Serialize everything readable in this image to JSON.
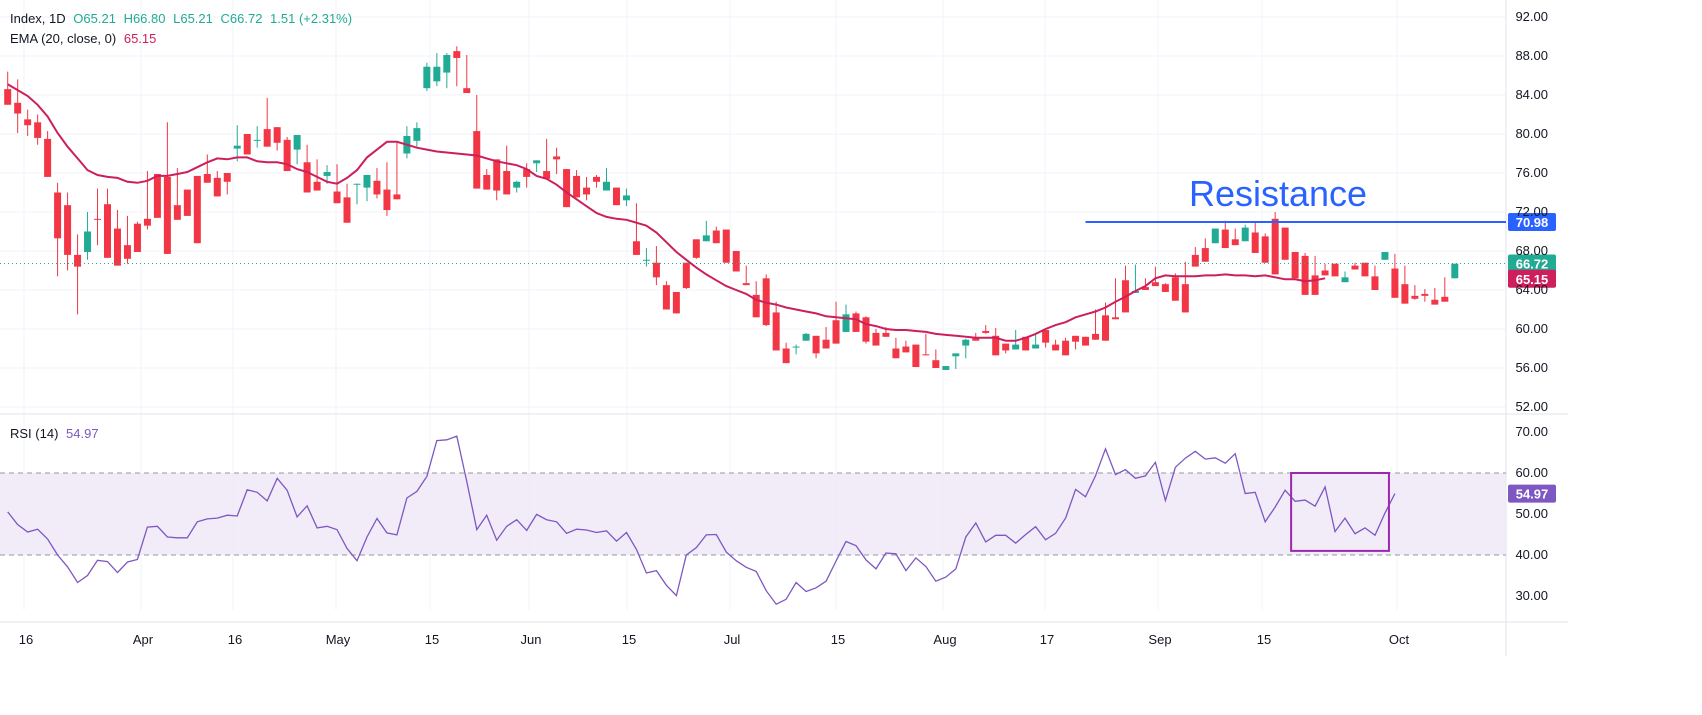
{
  "legend": {
    "symbol": "Index, 1D",
    "open": "O65.21",
    "high": "H66.80",
    "low": "L65.21",
    "close": "C66.72",
    "change": "1.51 (+2.31%)",
    "ema_label": "EMA (20, close, 0)",
    "ema_value": "65.15",
    "rsi_label": "RSI (14)",
    "rsi_value": "54.97"
  },
  "colors": {
    "up": "#22ab94",
    "down": "#f23645",
    "ema": "#cc1f5c",
    "rsi": "#7e57c2",
    "rsi_band": "#ede7f6",
    "resistance": "#2962ff",
    "box": "#9c27b0",
    "grid": "#f0f3fa"
  },
  "chart_data": [
    {
      "type": "candlestick",
      "title": "Index, 1D",
      "x_ticks": [
        "16",
        "Apr",
        "16",
        "May",
        "15",
        "Jun",
        "15",
        "Jul",
        "15",
        "Aug",
        "17",
        "Sep",
        "15",
        "Oct"
      ],
      "y_ticks": [
        "92.00",
        "88.00",
        "84.00",
        "80.00",
        "76.00",
        "72.00",
        "68.00",
        "64.00",
        "60.00",
        "56.00",
        "52.00"
      ],
      "ylim": [
        52,
        92
      ],
      "grid": true,
      "price_tags": {
        "resistance": "70.98",
        "last": "66.72",
        "ema": "65.15"
      },
      "annotation": "Resistance",
      "resistance_level": 70.98,
      "candles": [
        [
          84.6,
          86.4,
          83.6,
          83.0
        ],
        [
          83.2,
          85.6,
          80.1,
          82.1
        ],
        [
          81.5,
          82.5,
          79.8,
          80.9
        ],
        [
          81.2,
          82.0,
          78.9,
          79.6
        ],
        [
          79.5,
          80.3,
          75.9,
          75.6
        ],
        [
          74.0,
          75.0,
          65.4,
          69.3
        ],
        [
          72.7,
          74.0,
          66.0,
          67.6
        ],
        [
          67.6,
          69.7,
          61.5,
          66.4
        ],
        [
          67.9,
          72.0,
          67.1,
          70.0
        ],
        [
          71.3,
          74.4,
          68.6,
          71.2
        ],
        [
          72.8,
          74.4,
          67.9,
          67.3
        ],
        [
          70.3,
          72.2,
          67.3,
          66.5
        ],
        [
          68.6,
          71.6,
          66.7,
          67.2
        ],
        [
          70.8,
          71.0,
          68.3,
          67.9
        ],
        [
          71.3,
          76.2,
          70.2,
          70.6
        ],
        [
          75.9,
          75.0,
          71.5,
          71.4
        ],
        [
          75.6,
          81.2,
          74.9,
          67.7
        ],
        [
          72.7,
          76.5,
          71.4,
          71.2
        ],
        [
          74.3,
          72.7,
          73.3,
          71.6
        ],
        [
          75.7,
          75.1,
          73.7,
          68.8
        ],
        [
          75.9,
          77.9,
          75.8,
          75.0
        ],
        [
          75.5,
          76.2,
          74.3,
          73.6
        ],
        [
          76.0,
          74.3,
          73.8,
          75.1
        ],
        [
          78.5,
          80.9,
          77.2,
          78.8
        ],
        [
          80.0,
          79.1,
          79.1,
          77.9
        ],
        [
          79.4,
          80.8,
          78.6,
          79.4
        ],
        [
          80.5,
          83.7,
          80.5,
          78.7
        ],
        [
          80.7,
          80.1,
          78.3,
          79.1
        ],
        [
          79.4,
          79.7,
          78.2,
          76.2
        ],
        [
          78.4,
          78.5,
          76.9,
          79.9
        ],
        [
          77.1,
          78.9,
          74.3,
          74.0
        ],
        [
          75.1,
          77.4,
          74.4,
          74.2
        ],
        [
          75.7,
          76.8,
          74.9,
          76.1
        ],
        [
          74.1,
          76.9,
          73.6,
          72.9
        ],
        [
          73.5,
          74.9,
          72.2,
          70.9
        ],
        [
          74.8,
          74.2,
          72.8,
          74.9
        ],
        [
          74.5,
          75.7,
          73.1,
          75.8
        ],
        [
          75.2,
          76.5,
          73.4,
          73.8
        ],
        [
          74.3,
          77.1,
          71.6,
          72.2
        ],
        [
          73.8,
          79.2,
          73.6,
          73.3
        ],
        [
          78.0,
          80.8,
          77.5,
          79.8
        ],
        [
          79.3,
          81.2,
          78.7,
          80.6
        ],
        [
          84.7,
          87.3,
          84.4,
          86.9
        ],
        [
          85.4,
          88.3,
          84.9,
          86.9
        ],
        [
          86.3,
          88.3,
          84.7,
          88.1
        ],
        [
          88.5,
          89.0,
          84.9,
          87.8
        ],
        [
          84.7,
          88.1,
          84.2,
          84.2
        ],
        [
          80.3,
          84.0,
          76.1,
          74.4
        ],
        [
          75.8,
          76.4,
          74.6,
          74.3
        ],
        [
          77.4,
          77.3,
          73.2,
          74.2
        ],
        [
          76.2,
          78.8,
          75.0,
          73.8
        ],
        [
          74.5,
          75.2,
          74.0,
          75.1
        ],
        [
          76.4,
          77.0,
          74.5,
          75.6
        ],
        [
          77.0,
          76.6,
          76.1,
          77.3
        ],
        [
          76.2,
          79.5,
          76.3,
          75.4
        ],
        [
          77.7,
          78.6,
          75.9,
          77.4
        ],
        [
          76.4,
          75.8,
          73.6,
          72.5
        ],
        [
          75.7,
          76.3,
          74.9,
          73.5
        ],
        [
          74.5,
          75.6,
          73.2,
          73.8
        ],
        [
          75.6,
          75.8,
          74.5,
          75.1
        ],
        [
          74.2,
          76.5,
          74.6,
          75.1
        ],
        [
          74.5,
          74.0,
          73.1,
          72.7
        ],
        [
          73.2,
          74.4,
          72.6,
          73.7
        ],
        [
          69.0,
          72.9,
          67.7,
          67.6
        ],
        [
          67.0,
          68.3,
          66.4,
          67.1
        ],
        [
          66.8,
          68.5,
          64.5,
          65.3
        ],
        [
          64.5,
          64.9,
          62.5,
          62.0
        ],
        [
          63.8,
          63.8,
          62.0,
          61.6
        ],
        [
          66.8,
          65.6,
          64.1,
          64.2
        ],
        [
          69.2,
          68.4,
          67.2,
          67.3
        ],
        [
          69.0,
          71.1,
          69.3,
          69.6
        ],
        [
          70.1,
          70.5,
          68.9,
          68.8
        ],
        [
          70.2,
          69.4,
          67.7,
          66.8
        ],
        [
          68.0,
          67.4,
          67.1,
          65.9
        ],
        [
          64.7,
          66.5,
          65.5,
          64.5
        ],
        [
          63.5,
          64.9,
          62.4,
          61.2
        ],
        [
          65.2,
          65.6,
          60.3,
          60.4
        ],
        [
          61.7,
          62.8,
          59.5,
          57.8
        ],
        [
          58.0,
          58.6,
          58.2,
          56.5
        ],
        [
          58.2,
          58.4,
          57.4,
          58.2
        ],
        [
          58.8,
          59.6,
          59.2,
          59.5
        ],
        [
          59.3,
          58.4,
          57.0,
          57.5
        ],
        [
          58.9,
          60.2,
          58.0,
          58.0
        ],
        [
          60.9,
          62.8,
          61.5,
          58.5
        ],
        [
          59.7,
          62.5,
          60.2,
          61.5
        ],
        [
          61.6,
          61.8,
          61.5,
          59.7
        ],
        [
          61.2,
          61.3,
          58.5,
          58.7
        ],
        [
          59.6,
          60.0,
          59.6,
          58.3
        ],
        [
          59.6,
          60.2,
          59.4,
          59.2
        ],
        [
          58.0,
          59.1,
          58.5,
          57.0
        ],
        [
          58.2,
          58.8,
          58.2,
          57.6
        ],
        [
          58.4,
          58.3,
          56.9,
          56.1
        ],
        [
          57.4,
          59.5,
          57.9,
          57.3
        ],
        [
          56.8,
          57.9,
          56.0,
          56.0
        ],
        [
          55.8,
          56.1,
          55.9,
          56.2
        ],
        [
          57.2,
          56.4,
          55.9,
          57.5
        ],
        [
          58.3,
          59.0,
          57.0,
          58.9
        ],
        [
          59.1,
          59.6,
          58.8,
          58.8
        ],
        [
          59.8,
          60.4,
          59.5,
          59.6
        ],
        [
          59.3,
          60.1,
          57.8,
          57.3
        ],
        [
          58.5,
          58.0,
          57.5,
          57.8
        ],
        [
          57.9,
          59.9,
          58.1,
          58.4
        ],
        [
          59.2,
          58.9,
          57.9,
          57.8
        ],
        [
          58.0,
          59.4,
          58.1,
          58.4
        ],
        [
          59.9,
          58.7,
          58.1,
          58.6
        ],
        [
          58.4,
          58.9,
          57.8,
          57.8
        ],
        [
          58.8,
          59.1,
          58.2,
          57.3
        ],
        [
          59.3,
          59.1,
          57.9,
          58.7
        ],
        [
          59.2,
          59.2,
          58.3,
          58.3
        ],
        [
          59.5,
          62.0,
          58.9,
          58.9
        ],
        [
          61.4,
          62.7,
          59.4,
          58.8
        ],
        [
          61.2,
          65.2,
          62.6,
          61.0
        ],
        [
          65.0,
          66.5,
          63.7,
          61.7
        ],
        [
          63.7,
          66.6,
          65.1,
          63.9
        ],
        [
          64.3,
          65.2,
          64.6,
          64.0
        ],
        [
          64.8,
          66.4,
          64.4,
          64.4
        ],
        [
          64.6,
          64.7,
          64.4,
          63.8
        ],
        [
          65.3,
          65.5,
          65.7,
          62.9
        ],
        [
          64.6,
          66.9,
          65.0,
          61.7
        ],
        [
          67.6,
          68.4,
          67.0,
          66.4
        ],
        [
          68.3,
          69.3,
          68.1,
          66.9
        ],
        [
          68.8,
          70.1,
          68.9,
          70.3
        ],
        [
          70.2,
          71.1,
          69.5,
          68.3
        ],
        [
          69.2,
          69.2,
          70.3,
          68.6
        ],
        [
          69.0,
          70.7,
          69.0,
          70.4
        ],
        [
          69.9,
          70.9,
          69.0,
          67.8
        ],
        [
          69.5,
          69.1,
          69.8,
          66.8
        ],
        [
          71.3,
          72.0,
          70.5,
          65.6
        ],
        [
          70.4,
          68.4,
          67.3,
          67.1
        ],
        [
          67.9,
          66.9,
          66.1,
          65.2
        ],
        [
          67.5,
          67.8,
          65.0,
          63.5
        ],
        [
          65.5,
          67.5,
          66.0,
          63.5
        ],
        [
          66.0,
          66.7,
          65.6,
          65.5
        ],
        [
          66.7,
          66.7,
          65.6,
          65.4
        ],
        [
          64.8,
          65.6,
          65.9,
          65.3
        ],
        [
          66.5,
          66.8,
          66.2,
          66.1
        ],
        [
          66.8,
          66.5,
          66.6,
          65.4
        ],
        [
          65.4,
          66.5,
          65.7,
          64.0
        ],
        [
          67.1,
          67.4,
          67.5,
          67.9
        ],
        [
          66.2,
          67.7,
          64.2,
          63.2
        ],
        [
          64.6,
          66.5,
          63.2,
          62.6
        ],
        [
          63.4,
          64.5,
          63.0,
          63.1
        ],
        [
          63.6,
          64.1,
          62.8,
          63.4
        ],
        [
          63.0,
          64.2,
          62.8,
          62.5
        ],
        [
          63.3,
          65.3,
          64.6,
          62.8
        ],
        [
          65.2,
          66.7,
          65.2,
          66.7
        ]
      ],
      "ema20": [
        85.1,
        84.5,
        83.9,
        83.0,
        81.8,
        80.1,
        78.7,
        77.5,
        76.3,
        75.8,
        75.6,
        75.5,
        75.1,
        75.0,
        75.2,
        75.7,
        75.7,
        75.9,
        76.1,
        76.6,
        77.1,
        77.5,
        77.4,
        77.6,
        77.6,
        77.2,
        77.1,
        77.1,
        76.9,
        76.4,
        76.1,
        75.6,
        75.1,
        74.9,
        75.5,
        76.3,
        77.6,
        78.4,
        79.2,
        79.2,
        78.9,
        78.6,
        78.4,
        78.2,
        78.1,
        78.0,
        77.9,
        77.8,
        77.5,
        77.2,
        77.0,
        76.8,
        76.4,
        75.7,
        75.4,
        74.8,
        74.0,
        73.3,
        72.6,
        71.9,
        71.5,
        71.3,
        71.2,
        70.9,
        70.6,
        69.9,
        68.9,
        67.9,
        67.1,
        66.3,
        65.6,
        65.0,
        64.4,
        64.0,
        63.6,
        63.0,
        62.7,
        62.5,
        62.2,
        62.0,
        61.8,
        61.6,
        61.3,
        61.2,
        61.1,
        61.0,
        60.5,
        60.3,
        60.0,
        59.9,
        59.9,
        59.8,
        59.7,
        59.5,
        59.4,
        59.3,
        59.2,
        59.1,
        59.1,
        59.1,
        58.8,
        58.8,
        59.1,
        59.5,
        60.0,
        60.4,
        60.7,
        61.2,
        61.5,
        61.8,
        62.2,
        62.8,
        63.3,
        63.9,
        64.4,
        65.2,
        65.5,
        65.4,
        65.4,
        65.4,
        65.5,
        65.5,
        65.6,
        65.5,
        65.5,
        65.4,
        65.5,
        65.3,
        65.1,
        65.1,
        64.9,
        65.0,
        65.2
      ]
    },
    {
      "type": "line",
      "title": "RSI (14)",
      "y_ticks": [
        "70.00",
        "60.00",
        "50.00",
        "40.00",
        "30.00"
      ],
      "ylim": [
        25.5,
        71.5
      ],
      "band": [
        40,
        60
      ],
      "last_tag": "54.97",
      "values": [
        50.5,
        47.4,
        45.6,
        46.3,
        43.9,
        40.0,
        37.1,
        33.3,
        35.0,
        38.7,
        38.4,
        35.7,
        38.3,
        38.9,
        46.8,
        47.0,
        44.4,
        44.2,
        44.2,
        48.1,
        48.8,
        49.0,
        49.7,
        49.5,
        55.9,
        55.3,
        53.2,
        58.7,
        55.8,
        49.3,
        52.0,
        46.6,
        47.0,
        46.2,
        41.6,
        38.6,
        44.4,
        48.9,
        45.4,
        44.9,
        53.9,
        55.5,
        59.2,
        67.9,
        68.1,
        69.0,
        57.9,
        46.2,
        49.7,
        43.6,
        47.0,
        48.6,
        46.0,
        49.9,
        48.6,
        48.1,
        45.3,
        46.3,
        46.1,
        45.5,
        45.9,
        43.4,
        45.5,
        41.4,
        35.6,
        36.2,
        32.6,
        30.1,
        40.0,
        41.8,
        44.9,
        45.0,
        40.7,
        38.6,
        37.0,
        36.0,
        31.3,
        28.0,
        29.2,
        33.3,
        31.1,
        32.0,
        33.6,
        38.5,
        43.3,
        42.3,
        38.8,
        36.6,
        40.5,
        40.3,
        36.2,
        39.3,
        37.2,
        33.6,
        34.6,
        36.6,
        44.4,
        47.8,
        43.2,
        44.8,
        44.8,
        42.9,
        45.0,
        46.9,
        43.7,
        45.3,
        49.0,
        56.0,
        54.2,
        59.3,
        65.9,
        59.6,
        60.8,
        58.7,
        59.3,
        62.6,
        53.3,
        61.4,
        63.6,
        65.3,
        63.4,
        63.7,
        62.4,
        64.7,
        55.0,
        55.3,
        48.1,
        51.7,
        55.8,
        53.1,
        53.4,
        51.9,
        56.6,
        45.7,
        49.0,
        45.2,
        46.6,
        44.8,
        50.2,
        54.97
      ],
      "box_range": {
        "x_from": 129,
        "x_to": 138,
        "y_from": 41,
        "y_to": 60
      }
    }
  ]
}
